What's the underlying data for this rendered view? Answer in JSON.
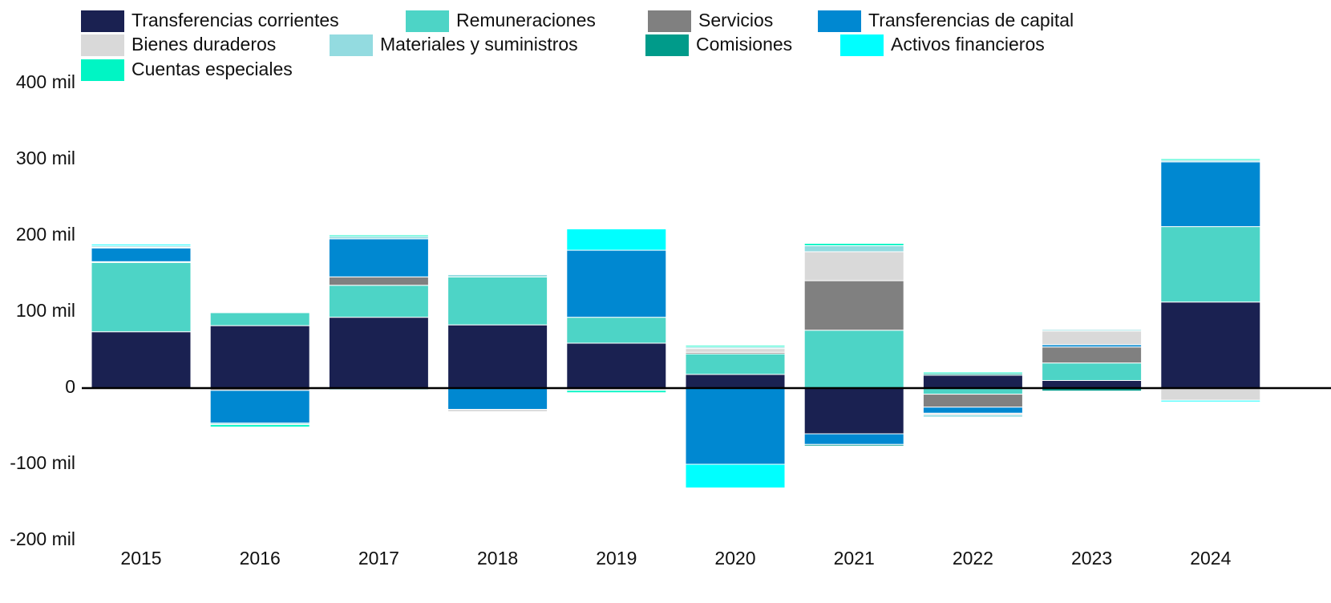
{
  "chart_data": {
    "type": "stacked_bar",
    "categories": [
      "2015",
      "2016",
      "2017",
      "2018",
      "2019",
      "2020",
      "2021",
      "2022",
      "2023",
      "2024"
    ],
    "series": [
      {
        "name": "Transferencias corrientes",
        "color": "#1a2151",
        "values": [
          74000,
          82000,
          93000,
          83000,
          59000,
          18000,
          -60000,
          17000,
          10000,
          113000
        ]
      },
      {
        "name": "Remuneraciones",
        "color": "#4dd4c6",
        "values": [
          91000,
          17000,
          42000,
          63000,
          34000,
          27000,
          76000,
          -8000,
          23000,
          99000
        ]
      },
      {
        "name": "Servicios",
        "color": "#808080",
        "values": [
          1000,
          -3000,
          11000,
          0,
          0,
          2000,
          65000,
          -17000,
          21000,
          0
        ]
      },
      {
        "name": "Transferencias de capital",
        "color": "#0088d1",
        "values": [
          18000,
          -43000,
          50000,
          -28000,
          88000,
          -100000,
          -14000,
          -8000,
          3000,
          85000
        ]
      },
      {
        "name": "Bienes duraderos",
        "color": "#d9d9d9",
        "values": [
          1000,
          0,
          0,
          -3000,
          -3000,
          5000,
          38000,
          -2000,
          18000,
          -16000
        ]
      },
      {
        "name": "Materiales y suministros",
        "color": "#93dbe0",
        "values": [
          2000,
          -2000,
          3000,
          3000,
          0,
          2000,
          8000,
          -3000,
          2000,
          2000
        ]
      },
      {
        "name": "Comisiones",
        "color": "#009b8a",
        "values": [
          -1000,
          0,
          -2000,
          -1000,
          0,
          0,
          -2000,
          2000,
          -4000,
          0
        ]
      },
      {
        "name": "Activos financieros",
        "color": "#00ffff",
        "values": [
          2000,
          0,
          0,
          0,
          28000,
          -31000,
          0,
          0,
          -1000,
          -2000
        ]
      },
      {
        "name": "Cuentas especiales",
        "color": "#00f5c4",
        "values": [
          0,
          -3000,
          2000,
          -1000,
          -3000,
          2000,
          3000,
          2000,
          1000,
          2000
        ]
      }
    ],
    "ylim": [
      -200000,
      400000
    ],
    "yticks": [
      {
        "value": -200000,
        "label": "-200 mil"
      },
      {
        "value": -100000,
        "label": "-100 mil"
      },
      0,
      {
        "value": 100000,
        "label": "100 mil"
      },
      {
        "value": 200000,
        "label": "200 mil"
      },
      {
        "value": 300000,
        "label": "300 mil"
      },
      {
        "value": 400000,
        "label": "400 mil"
      }
    ],
    "legend": "top-left"
  }
}
